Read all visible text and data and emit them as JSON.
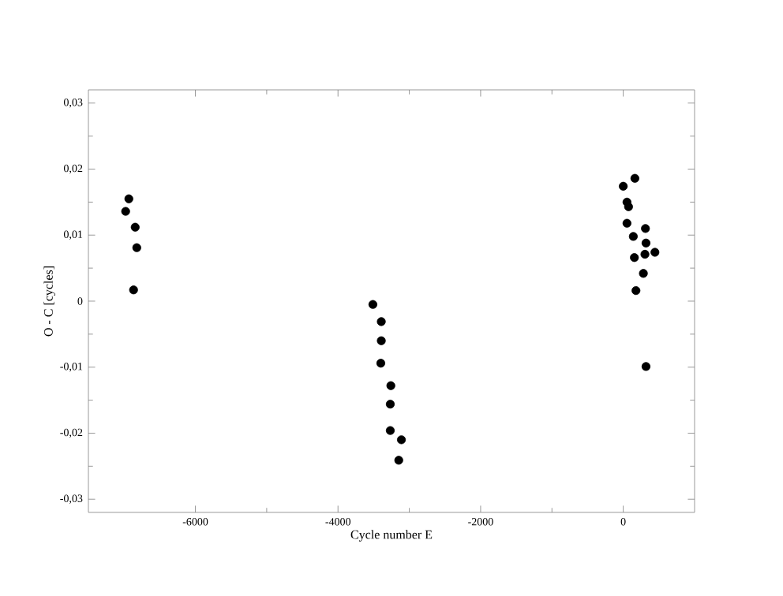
{
  "chart_data": {
    "type": "scatter",
    "xlabel": "Cycle number E",
    "ylabel": "O - C [cycles]",
    "marker": "circle",
    "grid": false,
    "xlim": [
      -7500,
      1000
    ],
    "ylim": [
      -0.032,
      0.032
    ],
    "xticks": [
      -6000,
      -4000,
      -2000,
      0
    ],
    "yticks": [
      {
        "value": -0.03,
        "label": "-0,03"
      },
      {
        "value": -0.02,
        "label": "-0,02"
      },
      {
        "value": -0.01,
        "label": "-0,01"
      },
      {
        "value": 0,
        "label": "0"
      },
      {
        "value": 0.01,
        "label": "0,01"
      },
      {
        "value": 0.02,
        "label": "0,02"
      },
      {
        "value": 0.03,
        "label": "0,03"
      }
    ],
    "series": [
      {
        "color": "#000000",
        "x": [
          -6933,
          -6978,
          -6844,
          -6822,
          -6867,
          -3511,
          -3393,
          -3393,
          -3400,
          -3259,
          -3267,
          -3267,
          -3111,
          -3148,
          163,
          0,
          52,
          74,
          52,
          141,
          311,
          319,
          444,
          304,
          156,
          282,
          178,
          319
        ],
        "values": [
          0.0155,
          0.0136,
          0.0112,
          0.0081,
          0.0017,
          -0.0005,
          -0.0031,
          -0.006,
          -0.0094,
          -0.0128,
          -0.0156,
          -0.0196,
          -0.021,
          -0.0241,
          0.0186,
          0.0174,
          0.015,
          0.0143,
          0.0118,
          0.0098,
          0.011,
          0.0088,
          0.0074,
          0.0071,
          0.0066,
          0.0042,
          0.0016,
          -0.0099
        ]
      }
    ]
  }
}
